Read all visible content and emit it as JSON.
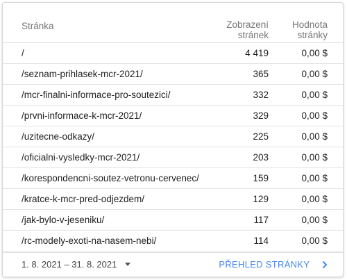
{
  "table": {
    "headers": {
      "page": "Stránka",
      "views_line1": "Zobrazení",
      "views_line2": "stránek",
      "value_line1": "Hodnota",
      "value_line2": "stránky"
    },
    "rows": [
      {
        "page": "/",
        "views": "4 419",
        "value": "0,00 $"
      },
      {
        "page": "/seznam-prihlasek-mcr-2021/",
        "views": "365",
        "value": "0,00 $"
      },
      {
        "page": "/mcr-finalni-informace-pro-soutezici/",
        "views": "332",
        "value": "0,00 $"
      },
      {
        "page": "/prvni-informace-k-mcr-2021/",
        "views": "329",
        "value": "0,00 $"
      },
      {
        "page": "/uzitecne-odkazy/",
        "views": "225",
        "value": "0,00 $"
      },
      {
        "page": "/oficialni-vysledky-mcr-2021/",
        "views": "203",
        "value": "0,00 $"
      },
      {
        "page": "/korespondencni-soutez-vetronu-cervenec/",
        "views": "159",
        "value": "0,00 $"
      },
      {
        "page": "/kratce-k-mcr-pred-odjezdem/",
        "views": "129",
        "value": "0,00 $"
      },
      {
        "page": "/jak-bylo-v-jeseniku/",
        "views": "117",
        "value": "0,00 $"
      },
      {
        "page": "/rc-modely-exoti-na-nasem-nebi/",
        "views": "114",
        "value": "0,00 $"
      }
    ]
  },
  "footer": {
    "date_range": "1. 8. 2021 – 31. 8. 2021",
    "report_link": "PŘEHLED STRÁNKY"
  },
  "colors": {
    "accent": "#4285f4",
    "text": "#212121",
    "muted": "#757575"
  },
  "icons": {
    "date_caret": "caret-down-icon",
    "report_chevron": "chevron-right-icon"
  }
}
